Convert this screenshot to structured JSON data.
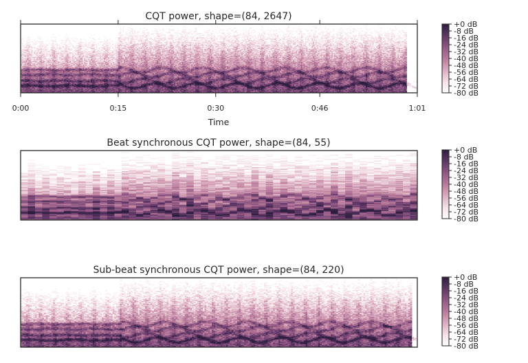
{
  "chart_data": [
    {
      "type": "heatmap",
      "title": "CQT power, shape=(84, 2647)",
      "shape": [
        84,
        2647
      ],
      "xlabel": "Time",
      "x_ticks": [
        "0:00",
        "0:15",
        "0:30",
        "0:46",
        "1:01"
      ],
      "x_tick_seconds": [
        0,
        15,
        30,
        46,
        61
      ],
      "duration_seconds": 61.5,
      "colorbar_ticks": [
        "+0 dB",
        "-8 dB",
        "-16 dB",
        "-24 dB",
        "-32 dB",
        "-40 dB",
        "-48 dB",
        "-56 dB",
        "-64 dB",
        "-72 dB",
        "-80 dB"
      ],
      "value_range_db": [
        -80,
        0
      ],
      "colormap": [
        "#ffffff",
        "#f3dfe6",
        "#d9a9bd",
        "#b87a9a",
        "#8e5683",
        "#5c3564",
        "#2d1e3e"
      ]
    },
    {
      "type": "heatmap",
      "title": "Beat synchronous CQT power, shape=(84, 55)",
      "shape": [
        84,
        55
      ],
      "colorbar_ticks": [
        "+0 dB",
        "-8 dB",
        "-16 dB",
        "-24 dB",
        "-32 dB",
        "-40 dB",
        "-48 dB",
        "-56 dB",
        "-64 dB",
        "-72 dB",
        "-80 dB"
      ],
      "value_range_db": [
        -80,
        0
      ]
    },
    {
      "type": "heatmap",
      "title": "Sub-beat synchronous CQT power, shape=(84, 220)",
      "shape": [
        84,
        220
      ],
      "colorbar_ticks": [
        "+0 dB",
        "-8 dB",
        "-16 dB",
        "-24 dB",
        "-32 dB",
        "-40 dB",
        "-48 dB",
        "-56 dB",
        "-64 dB",
        "-72 dB",
        "-80 dB"
      ],
      "value_range_db": [
        -80,
        0
      ]
    }
  ]
}
